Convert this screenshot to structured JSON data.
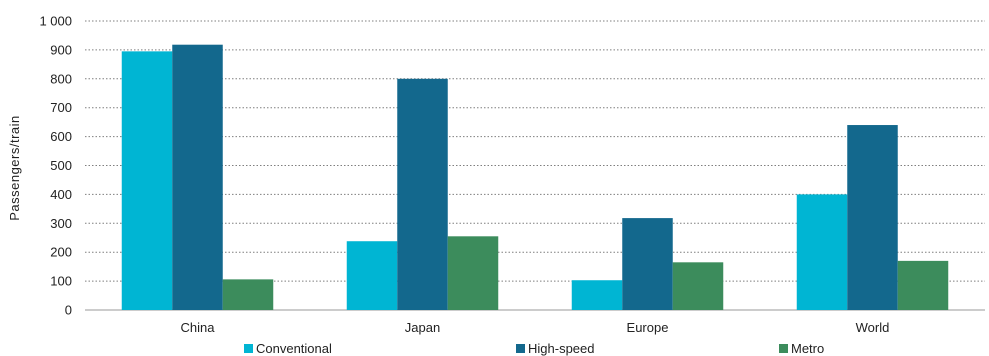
{
  "chart_data": {
    "type": "bar",
    "title": "",
    "xlabel": "",
    "ylabel": "Passengers/train",
    "ylim": [
      0,
      1000
    ],
    "yticks": [
      0,
      100,
      200,
      300,
      400,
      500,
      600,
      700,
      800,
      900,
      1000
    ],
    "ytick_labels": [
      "0",
      "100",
      "200",
      "300",
      "400",
      "500",
      "600",
      "700",
      "800",
      "900",
      "1 000"
    ],
    "grid": true,
    "legend_position": "bottom",
    "categories": [
      "China",
      "Japan",
      "Europe",
      "World"
    ],
    "series": [
      {
        "name": "Conventional",
        "color": "#00b5d3",
        "values": [
          895,
          238,
          103,
          400
        ]
      },
      {
        "name": "High-speed",
        "color": "#13688d",
        "values": [
          918,
          800,
          318,
          640
        ]
      },
      {
        "name": "Metro",
        "color": "#3c8c5c",
        "values": [
          106,
          255,
          165,
          170
        ]
      }
    ]
  }
}
